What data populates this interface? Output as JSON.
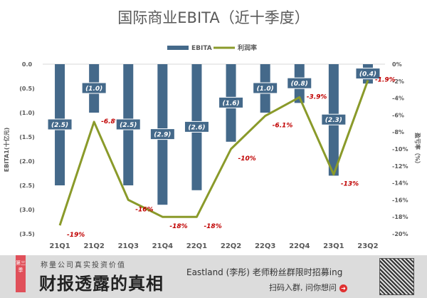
{
  "chart_data": {
    "type": "bar+line",
    "title": "国际商业EBITA（近十季度）",
    "categories": [
      "21Q1",
      "21Q2",
      "21Q3",
      "21Q4",
      "22Q1",
      "22Q2",
      "22Q3",
      "22Q4",
      "23Q1",
      "23Q2"
    ],
    "series": [
      {
        "name": "EBITA",
        "type": "bar",
        "axis": "left",
        "color": "#44698a",
        "values": [
          -2.5,
          -1.0,
          -2.5,
          -2.9,
          -2.6,
          -1.6,
          -1.0,
          -0.8,
          -2.3,
          -0.4
        ],
        "labels": [
          "(2.5)",
          "(1.0)",
          "(2.5)",
          "(2.9)",
          "(2.6)",
          "(1.6)",
          "(1.0)",
          "(0.8)",
          "(2.3)",
          "(0.4)"
        ]
      },
      {
        "name": "利润率",
        "type": "line",
        "axis": "right",
        "color": "#8a9a2a",
        "values": [
          -19,
          -6.8,
          -16,
          -18,
          -18,
          -10,
          -6.1,
          -3.9,
          -13,
          -1.9
        ],
        "labels": [
          "-19%",
          "-6.8%",
          "-16%",
          "-18%",
          "-18%",
          "-10%",
          "-6.1%",
          "-3.9%",
          "-13%",
          "-1.9%"
        ]
      }
    ],
    "ylabel": "EBITA1(十亿元)",
    "y2label": "盈亏率（%）",
    "ylim": [
      -3.5,
      0
    ],
    "y2lim": [
      -20,
      0
    ],
    "yticks": [
      "0.0",
      "(0.5)",
      "(1.0)",
      "(1.5)",
      "(2.0)",
      "(2.5)",
      "(3.0)",
      "(3.5)"
    ],
    "y2ticks": [
      "0%",
      "-2%",
      "-4%",
      "-6%",
      "-8%",
      "-10%",
      "-12%",
      "-14%",
      "-16%",
      "-18%",
      "-20%"
    ],
    "legend": "top",
    "data_label_color": "#c00000"
  },
  "banner": {
    "ribbon": "第三季",
    "subtitle": "称量公司真实投资价值",
    "headline": "财报透露的真相",
    "promo": "Eastland (李彤) 老师粉丝群限时招募ing",
    "cta": "扫码入群, 问你想问",
    "arrow": "➜"
  }
}
